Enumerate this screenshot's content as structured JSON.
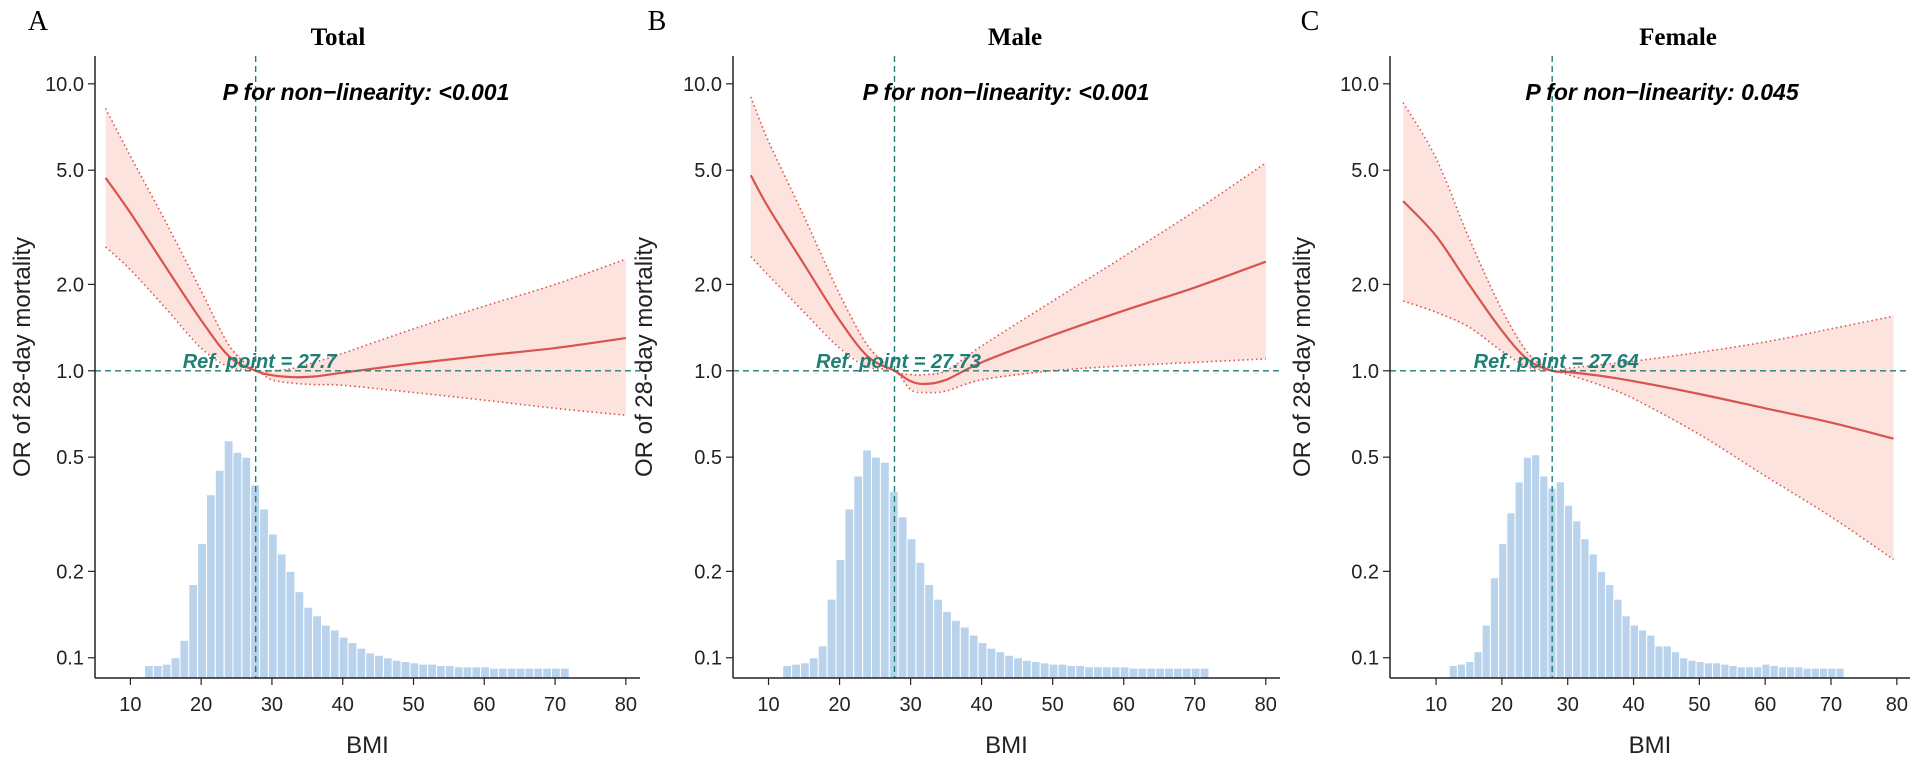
{
  "chart_data": [
    {
      "type": "line",
      "panel": "A",
      "title": "Total",
      "p_nonlinearity": "P for non−linearity: <0.001",
      "ref_point_label": "Ref. point = 27.7",
      "ref_point": 27.7,
      "xlabel": "BMI",
      "ylabel": "OR of 28-day mortality",
      "xlim": [
        5,
        82
      ],
      "ylim": [
        0.085,
        12.5
      ],
      "yscale": "log",
      "xticks": [
        10,
        20,
        30,
        40,
        50,
        60,
        70,
        80
      ],
      "yticks": [
        0.1,
        0.2,
        0.5,
        1.0,
        2.0,
        5.0,
        10.0
      ],
      "ytick_labels": [
        "0.1",
        "0.2",
        "0.5",
        "1.0",
        "2.0",
        "5.0",
        "10.0"
      ],
      "curve": {
        "x": [
          6.5,
          10,
          15,
          20,
          24,
          27.7,
          30,
          33,
          36,
          40,
          50,
          60,
          70,
          80
        ],
        "or": [
          4.7,
          3.55,
          2.3,
          1.5,
          1.12,
          1.0,
          0.965,
          0.95,
          0.955,
          0.985,
          1.06,
          1.13,
          1.2,
          1.3
        ],
        "lower": [
          2.7,
          2.25,
          1.65,
          1.2,
          1.03,
          1.0,
          0.93,
          0.905,
          0.895,
          0.89,
          0.84,
          0.79,
          0.74,
          0.7
        ],
        "upper": [
          8.2,
          5.6,
          3.3,
          1.9,
          1.22,
          1.0,
          1.0,
          1.02,
          1.07,
          1.15,
          1.4,
          1.68,
          2.0,
          2.45
        ]
      },
      "histogram": {
        "bin_start": 12,
        "bin_width": 1.25,
        "heights": [
          0.094,
          0.094,
          0.095,
          0.1,
          0.115,
          0.18,
          0.25,
          0.37,
          0.45,
          0.57,
          0.52,
          0.5,
          0.4,
          0.33,
          0.27,
          0.23,
          0.2,
          0.17,
          0.15,
          0.14,
          0.13,
          0.125,
          0.118,
          0.113,
          0.108,
          0.104,
          0.102,
          0.1,
          0.098,
          0.097,
          0.096,
          0.095,
          0.095,
          0.094,
          0.094,
          0.093,
          0.093,
          0.093,
          0.093,
          0.092,
          0.092,
          0.092,
          0.092,
          0.092,
          0.092,
          0.092,
          0.092,
          0.092
        ]
      }
    },
    {
      "type": "line",
      "panel": "B",
      "title": "Male",
      "p_nonlinearity": "P for non−linearity: <0.001",
      "ref_point_label": "Ref. point = 27.73",
      "ref_point": 27.73,
      "xlabel": "BMI",
      "ylabel": "OR of 28-day mortality",
      "xlim": [
        5,
        82
      ],
      "ylim": [
        0.085,
        12.5
      ],
      "yscale": "log",
      "xticks": [
        10,
        20,
        30,
        40,
        50,
        60,
        70,
        80
      ],
      "yticks": [
        0.1,
        0.2,
        0.5,
        1.0,
        2.0,
        5.0,
        10.0
      ],
      "ytick_labels": [
        "0.1",
        "0.2",
        "0.5",
        "1.0",
        "2.0",
        "5.0",
        "10.0"
      ],
      "curve": {
        "x": [
          7.5,
          10,
          15,
          20,
          24,
          27.73,
          30,
          32,
          35,
          40,
          50,
          60,
          70,
          80
        ],
        "or": [
          4.8,
          3.7,
          2.35,
          1.5,
          1.12,
          1.0,
          0.92,
          0.9,
          0.93,
          1.07,
          1.33,
          1.62,
          1.95,
          2.4
        ],
        "lower": [
          2.5,
          2.15,
          1.6,
          1.2,
          1.03,
          1.0,
          0.86,
          0.84,
          0.85,
          0.93,
          1.0,
          1.04,
          1.07,
          1.1
        ],
        "upper": [
          9.0,
          6.3,
          3.45,
          1.85,
          1.22,
          1.0,
          0.97,
          0.97,
          1.0,
          1.22,
          1.75,
          2.5,
          3.6,
          5.3
        ]
      },
      "histogram": {
        "bin_start": 12,
        "bin_width": 1.25,
        "heights": [
          0.094,
          0.095,
          0.096,
          0.1,
          0.11,
          0.16,
          0.22,
          0.33,
          0.43,
          0.53,
          0.5,
          0.48,
          0.38,
          0.31,
          0.26,
          0.215,
          0.18,
          0.16,
          0.145,
          0.135,
          0.128,
          0.12,
          0.113,
          0.108,
          0.105,
          0.102,
          0.1,
          0.098,
          0.097,
          0.096,
          0.095,
          0.095,
          0.094,
          0.094,
          0.093,
          0.093,
          0.093,
          0.093,
          0.093,
          0.092,
          0.092,
          0.092,
          0.092,
          0.092,
          0.092,
          0.092,
          0.092,
          0.092
        ]
      }
    },
    {
      "type": "line",
      "panel": "C",
      "title": "Female",
      "p_nonlinearity": "P for non−linearity: 0.045",
      "ref_point_label": "Ref. point = 27.64",
      "ref_point": 27.64,
      "xlabel": "BMI",
      "ylabel": "OR of 28-day mortality",
      "xlim": [
        3,
        82
      ],
      "ylim": [
        0.085,
        12.5
      ],
      "yscale": "log",
      "xticks": [
        10,
        20,
        30,
        40,
        50,
        60,
        70,
        80
      ],
      "yticks": [
        0.1,
        0.2,
        0.5,
        1.0,
        2.0,
        5.0,
        10.0
      ],
      "ytick_labels": [
        "0.1",
        "0.2",
        "0.5",
        "1.0",
        "2.0",
        "5.0",
        "10.0"
      ],
      "curve": {
        "x": [
          5,
          10,
          15,
          20,
          24,
          27.64,
          30,
          35,
          40,
          50,
          60,
          70,
          79.5
        ],
        "or": [
          3.9,
          2.95,
          2.0,
          1.38,
          1.09,
          1.0,
          0.99,
          0.96,
          0.92,
          0.83,
          0.74,
          0.66,
          0.58
        ],
        "lower": [
          1.75,
          1.6,
          1.42,
          1.17,
          1.03,
          1.0,
          0.97,
          0.89,
          0.8,
          0.6,
          0.43,
          0.31,
          0.22
        ],
        "upper": [
          8.6,
          5.5,
          2.9,
          1.63,
          1.15,
          1.0,
          1.02,
          1.05,
          1.08,
          1.16,
          1.26,
          1.4,
          1.55
        ]
      },
      "histogram": {
        "bin_start": 12,
        "bin_width": 1.25,
        "heights": [
          0.094,
          0.095,
          0.097,
          0.105,
          0.13,
          0.19,
          0.25,
          0.32,
          0.41,
          0.5,
          0.51,
          0.43,
          0.39,
          0.41,
          0.34,
          0.3,
          0.26,
          0.23,
          0.2,
          0.18,
          0.16,
          0.14,
          0.13,
          0.125,
          0.12,
          0.11,
          0.11,
          0.105,
          0.1,
          0.098,
          0.097,
          0.096,
          0.096,
          0.095,
          0.094,
          0.093,
          0.093,
          0.093,
          0.095,
          0.094,
          0.093,
          0.093,
          0.093,
          0.092,
          0.092,
          0.092,
          0.092,
          0.092
        ]
      }
    }
  ]
}
